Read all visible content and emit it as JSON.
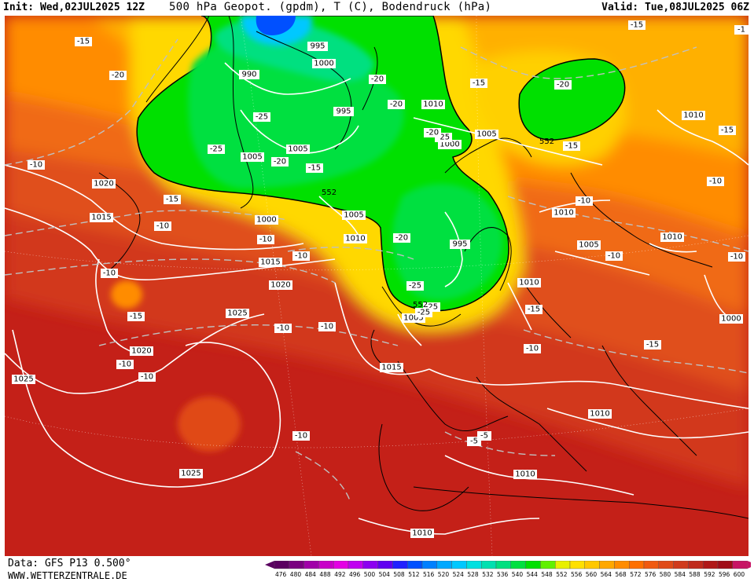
{
  "header": {
    "init": "Init: Wed,02JUL2025 12Z",
    "title": "500 hPa Geopot. (gpdm), T (C), Bodendruck (hPa)",
    "valid": "Valid: Tue,08JUL2025 06Z"
  },
  "footer": {
    "data_source": "Data: GFS P13 0.500°",
    "website": "WWW.WETTERZENTRALE.DE"
  },
  "colorbar": {
    "ticks": [
      "476",
      "480",
      "484",
      "488",
      "492",
      "496",
      "500",
      "504",
      "508",
      "512",
      "516",
      "520",
      "524",
      "528",
      "532",
      "536",
      "540",
      "544",
      "548",
      "552",
      "556",
      "560",
      "564",
      "568",
      "572",
      "576",
      "580",
      "584",
      "588",
      "592",
      "596",
      "600"
    ],
    "colors": [
      "#5a0060",
      "#7a0080",
      "#a000a8",
      "#c800c8",
      "#e400e4",
      "#c000f0",
      "#8c00f0",
      "#6000f0",
      "#2020ff",
      "#0050ff",
      "#0080ff",
      "#00a8ff",
      "#00c8ff",
      "#00e0e0",
      "#00e0b0",
      "#00e080",
      "#00e040",
      "#00e000",
      "#60f000",
      "#e8f000",
      "#ffe000",
      "#ffc800",
      "#ffa800",
      "#ff8c00",
      "#ff7000",
      "#f05a10",
      "#e04a18",
      "#d03a1c",
      "#c02a1c",
      "#b01818",
      "#a00c18",
      "#c81464"
    ]
  },
  "map": {
    "height_labels": [
      "552",
      "552",
      "552",
      "552"
    ],
    "pressure_labels": [
      "995",
      "990",
      "1000",
      "995",
      "1005",
      "1005",
      "1010",
      "1005",
      "1000",
      "1010",
      "1020",
      "1015",
      "1000",
      "1005",
      "1010",
      "1015",
      "995",
      "1020",
      "1025",
      "1020",
      "1015",
      "1010",
      "1005",
      "1010",
      "1005",
      "1010",
      "1000",
      "1025",
      "1025",
      "1010",
      "1010",
      "1010"
    ],
    "temperature_labels": [
      "-15",
      "-20",
      "-10",
      "-20",
      "-25",
      "-25",
      "-25",
      "-20",
      "-15",
      "-15",
      "-15",
      "-10",
      "-10",
      "-10",
      "-10",
      "-15",
      "-10",
      "-10",
      "-10",
      "-20",
      "-25",
      "-20",
      "-25",
      "-25",
      "-20",
      "-15",
      "-15",
      "-20",
      "-15",
      "-15",
      "-10",
      "-10",
      "-10",
      "-10",
      "-10",
      "-15",
      "-10",
      "-10",
      "-5",
      "-5",
      "-1"
    ]
  }
}
